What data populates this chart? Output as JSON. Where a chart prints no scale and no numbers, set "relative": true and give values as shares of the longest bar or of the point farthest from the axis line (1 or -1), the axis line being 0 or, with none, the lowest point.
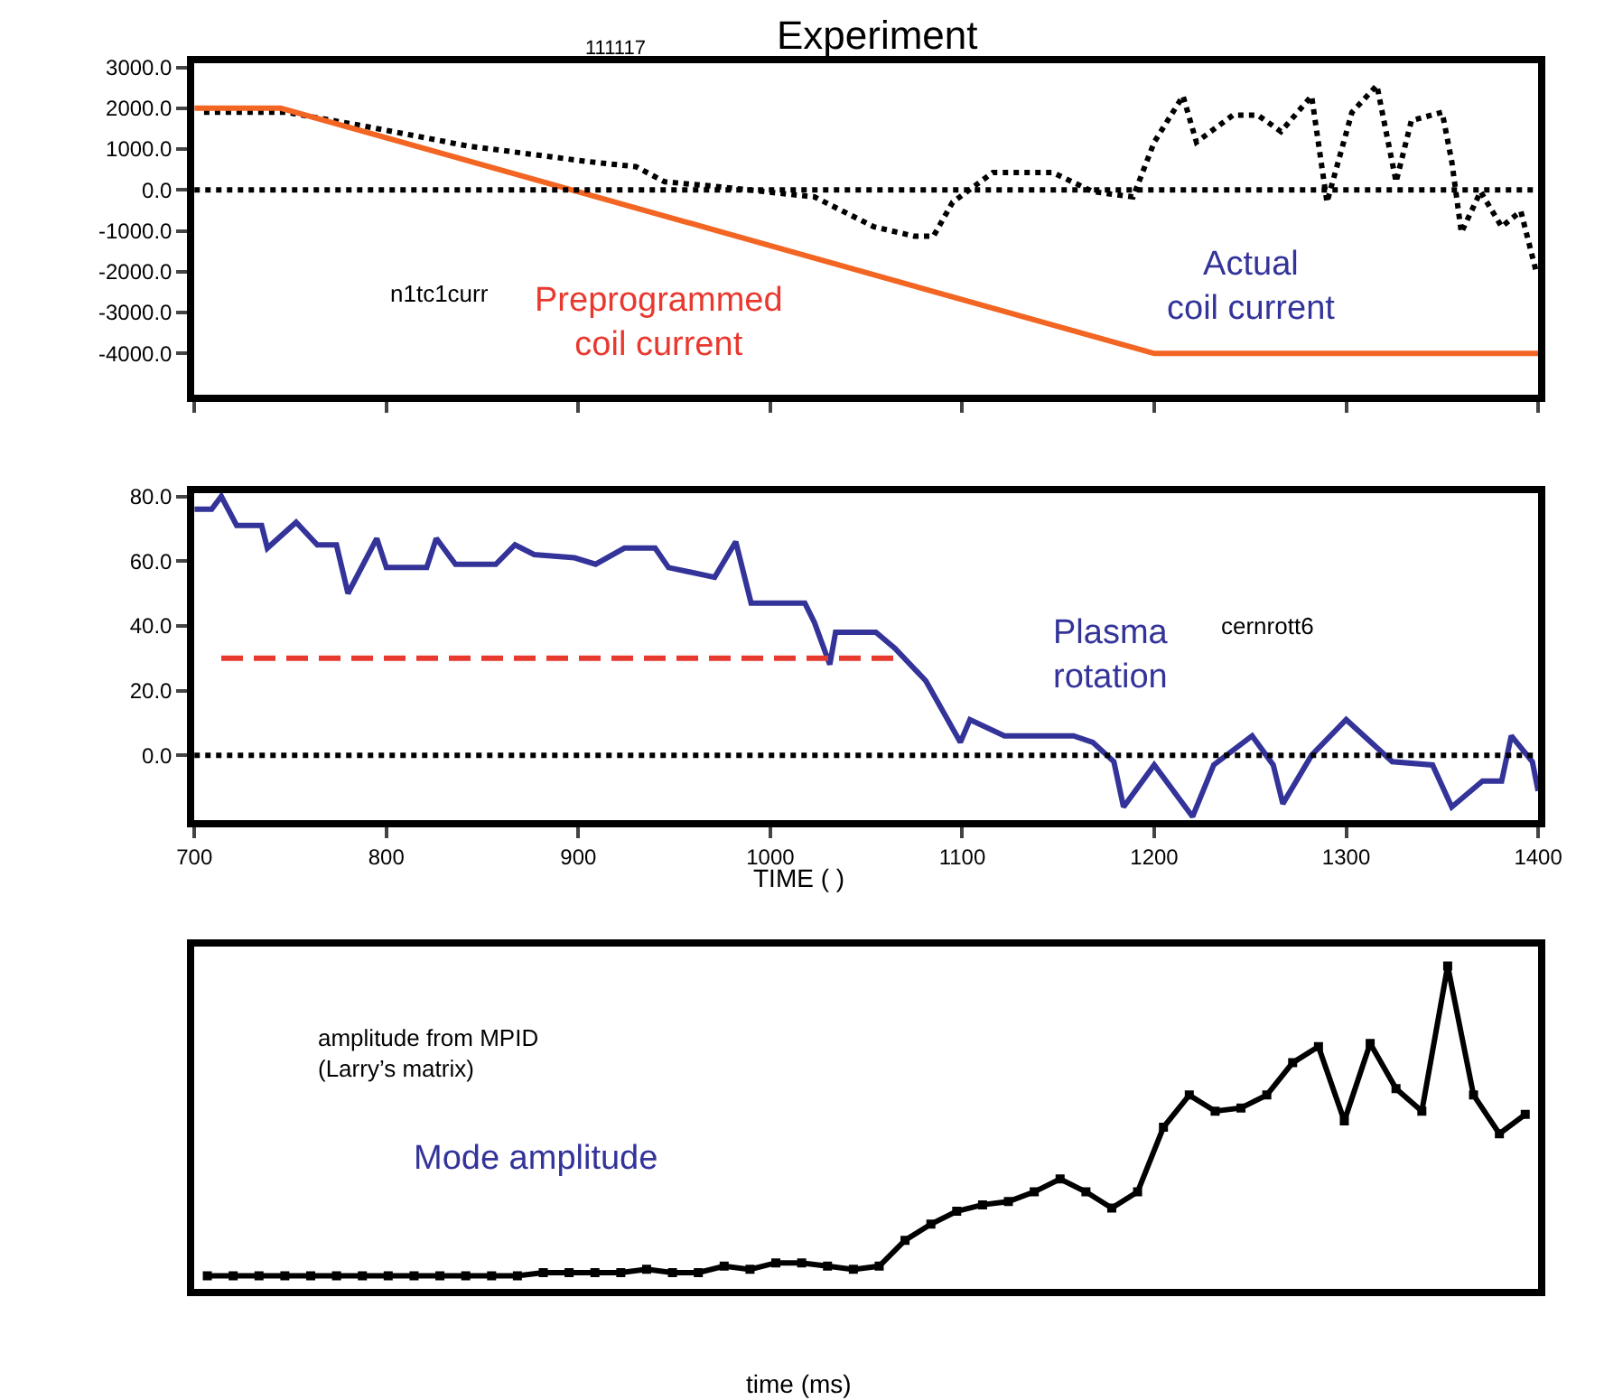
{
  "chart_data": [
    {
      "type": "line",
      "title": "Experiment",
      "xlim": [
        700,
        1400
      ],
      "xticks": [
        {
          "value": 700,
          "label": null
        },
        {
          "value": 800,
          "label": null
        },
        {
          "value": 900,
          "label": null
        },
        {
          "value": 1000,
          "label": null
        },
        {
          "value": 1100,
          "label": null
        },
        {
          "value": 1200,
          "label": null
        },
        {
          "value": 1300,
          "label": null
        },
        {
          "value": 1400,
          "label": null
        }
      ],
      "ylim": [
        -5000,
        3100
      ],
      "yticks": [
        {
          "value": -4000,
          "label": "-4000.0"
        },
        {
          "value": -3000,
          "label": "-3000.0"
        },
        {
          "value": -2000,
          "label": "-2000.0"
        },
        {
          "value": -1000,
          "label": "-1000.0"
        },
        {
          "value": 0,
          "label": "0.0"
        },
        {
          "value": 1000,
          "label": "1000.0"
        },
        {
          "value": 2000,
          "label": "2000.0"
        },
        {
          "value": 3000,
          "label": "3000.0"
        }
      ],
      "tick_labels": "y",
      "series": [
        {
          "color": "#000000",
          "line_style": "dotted",
          "x": [
            705,
            748,
            790,
            842,
            904,
            930,
            945,
            971,
            1023,
            1054,
            1075,
            1085,
            1095,
            1116,
            1147,
            1168,
            1189,
            1200,
            1215,
            1222,
            1241,
            1254,
            1266,
            1282,
            1290,
            1303,
            1316,
            1326,
            1334,
            1350,
            1355,
            1360,
            1370,
            1381,
            1391,
            1399
          ],
          "values": [
            1900,
            1900,
            1550,
            1080,
            700,
            570,
            200,
            90,
            -170,
            -900,
            -1130,
            -1130,
            -300,
            430,
            430,
            -40,
            -170,
            1170,
            2300,
            1170,
            1830,
            1830,
            1430,
            2300,
            -300,
            1900,
            2560,
            200,
            1700,
            1900,
            700,
            -1040,
            -40,
            -900,
            -520,
            -2000
          ]
        },
        {
          "color": "#f26522",
          "line_style": "solid",
          "x": [
            700,
            745,
            1200,
            1400
          ],
          "values": [
            2000,
            2000,
            -4000,
            -4000
          ]
        }
      ],
      "ref_lines": [
        {
          "axis": "y",
          "value": 0,
          "color": "#000000",
          "line_style": "dotted"
        }
      ],
      "annotations": [
        "111117",
        "n1tc1curr",
        "Preprogrammed\ncoil current",
        "Actual\ncoil current"
      ]
    },
    {
      "type": "line",
      "xlabel": "TIME ( )",
      "xlim": [
        700,
        1400
      ],
      "xticks": [
        700,
        800,
        900,
        1000,
        1100,
        1200,
        1300,
        1400
      ],
      "ylim": [
        -20,
        81
      ],
      "yticks": [
        {
          "value": 0,
          "label": "0.0"
        },
        {
          "value": 20,
          "label": "20.0"
        },
        {
          "value": 40,
          "label": "40.0"
        },
        {
          "value": 60,
          "label": "60.0"
        },
        {
          "value": 80,
          "label": "80.0"
        }
      ],
      "series": [
        {
          "color": "#333399",
          "line_style": "solid",
          "x": [
            700,
            709,
            714,
            722,
            735,
            738,
            753,
            764,
            774,
            780,
            795,
            800,
            821,
            826,
            836,
            857,
            867,
            877,
            898,
            909,
            924,
            940,
            947,
            971,
            982,
            990,
            1018,
            1023,
            1031,
            1034,
            1055,
            1065,
            1081,
            1099,
            1104,
            1122,
            1158,
            1168,
            1179,
            1184,
            1200,
            1220,
            1231,
            1251,
            1262,
            1267,
            1282,
            1300,
            1324,
            1345,
            1355,
            1371,
            1381,
            1386,
            1397,
            1400
          ],
          "values": [
            76,
            76,
            80,
            71,
            71,
            64,
            72,
            65,
            65,
            50,
            67,
            58,
            58,
            67,
            59,
            59,
            65,
            62,
            61,
            59,
            64,
            64,
            58,
            55,
            66,
            47,
            47,
            41,
            28,
            38,
            38,
            33,
            23,
            4,
            11,
            6,
            6,
            4,
            -2,
            -16,
            -3,
            -19,
            -3,
            6,
            -3,
            -15,
            0,
            11,
            -2,
            -3,
            -16,
            -8,
            -8,
            6,
            -2,
            -11
          ]
        },
        {
          "color": "#e8392f",
          "line_style": "dashed",
          "x": [
            714,
            1067
          ],
          "values": [
            30,
            30
          ]
        }
      ],
      "ref_lines": [
        {
          "axis": "y",
          "value": 0,
          "color": "#000000",
          "line_style": "dotted"
        }
      ],
      "annotations": [
        "Plasma\nrotation",
        "cernrott6"
      ]
    },
    {
      "type": "line",
      "relative": true,
      "xlabel": "time (ms)",
      "tick_labels": false,
      "marker": "square",
      "categories": [
        null,
        null,
        null,
        null,
        null,
        null,
        null,
        null,
        null,
        null,
        null,
        null,
        null,
        null,
        null,
        null,
        null,
        null,
        null,
        null,
        null,
        null,
        null,
        null,
        null,
        null,
        null,
        null,
        null,
        null,
        null,
        null,
        null,
        null,
        null,
        null,
        null,
        null,
        null,
        null,
        null,
        null,
        null,
        null,
        null,
        null,
        null,
        null,
        null,
        null,
        null,
        null
      ],
      "series": [
        {
          "color": "#000000",
          "line_style": "solid",
          "values": [
            0.04,
            0.04,
            0.04,
            0.04,
            0.04,
            0.04,
            0.04,
            0.04,
            0.04,
            0.04,
            0.04,
            0.04,
            0.04,
            0.05,
            0.05,
            0.05,
            0.05,
            0.06,
            0.05,
            0.05,
            0.07,
            0.06,
            0.08,
            0.08,
            0.07,
            0.06,
            0.07,
            0.15,
            0.2,
            0.24,
            0.26,
            0.27,
            0.3,
            0.34,
            0.3,
            0.25,
            0.3,
            0.5,
            0.6,
            0.55,
            0.56,
            0.6,
            0.7,
            0.75,
            0.52,
            0.76,
            0.62,
            0.55,
            1.0,
            0.6,
            0.48,
            0.54
          ]
        }
      ],
      "annotations": [
        "amplitude from MPID\n(Larry’s matrix)",
        "Mode amplitude"
      ]
    }
  ]
}
